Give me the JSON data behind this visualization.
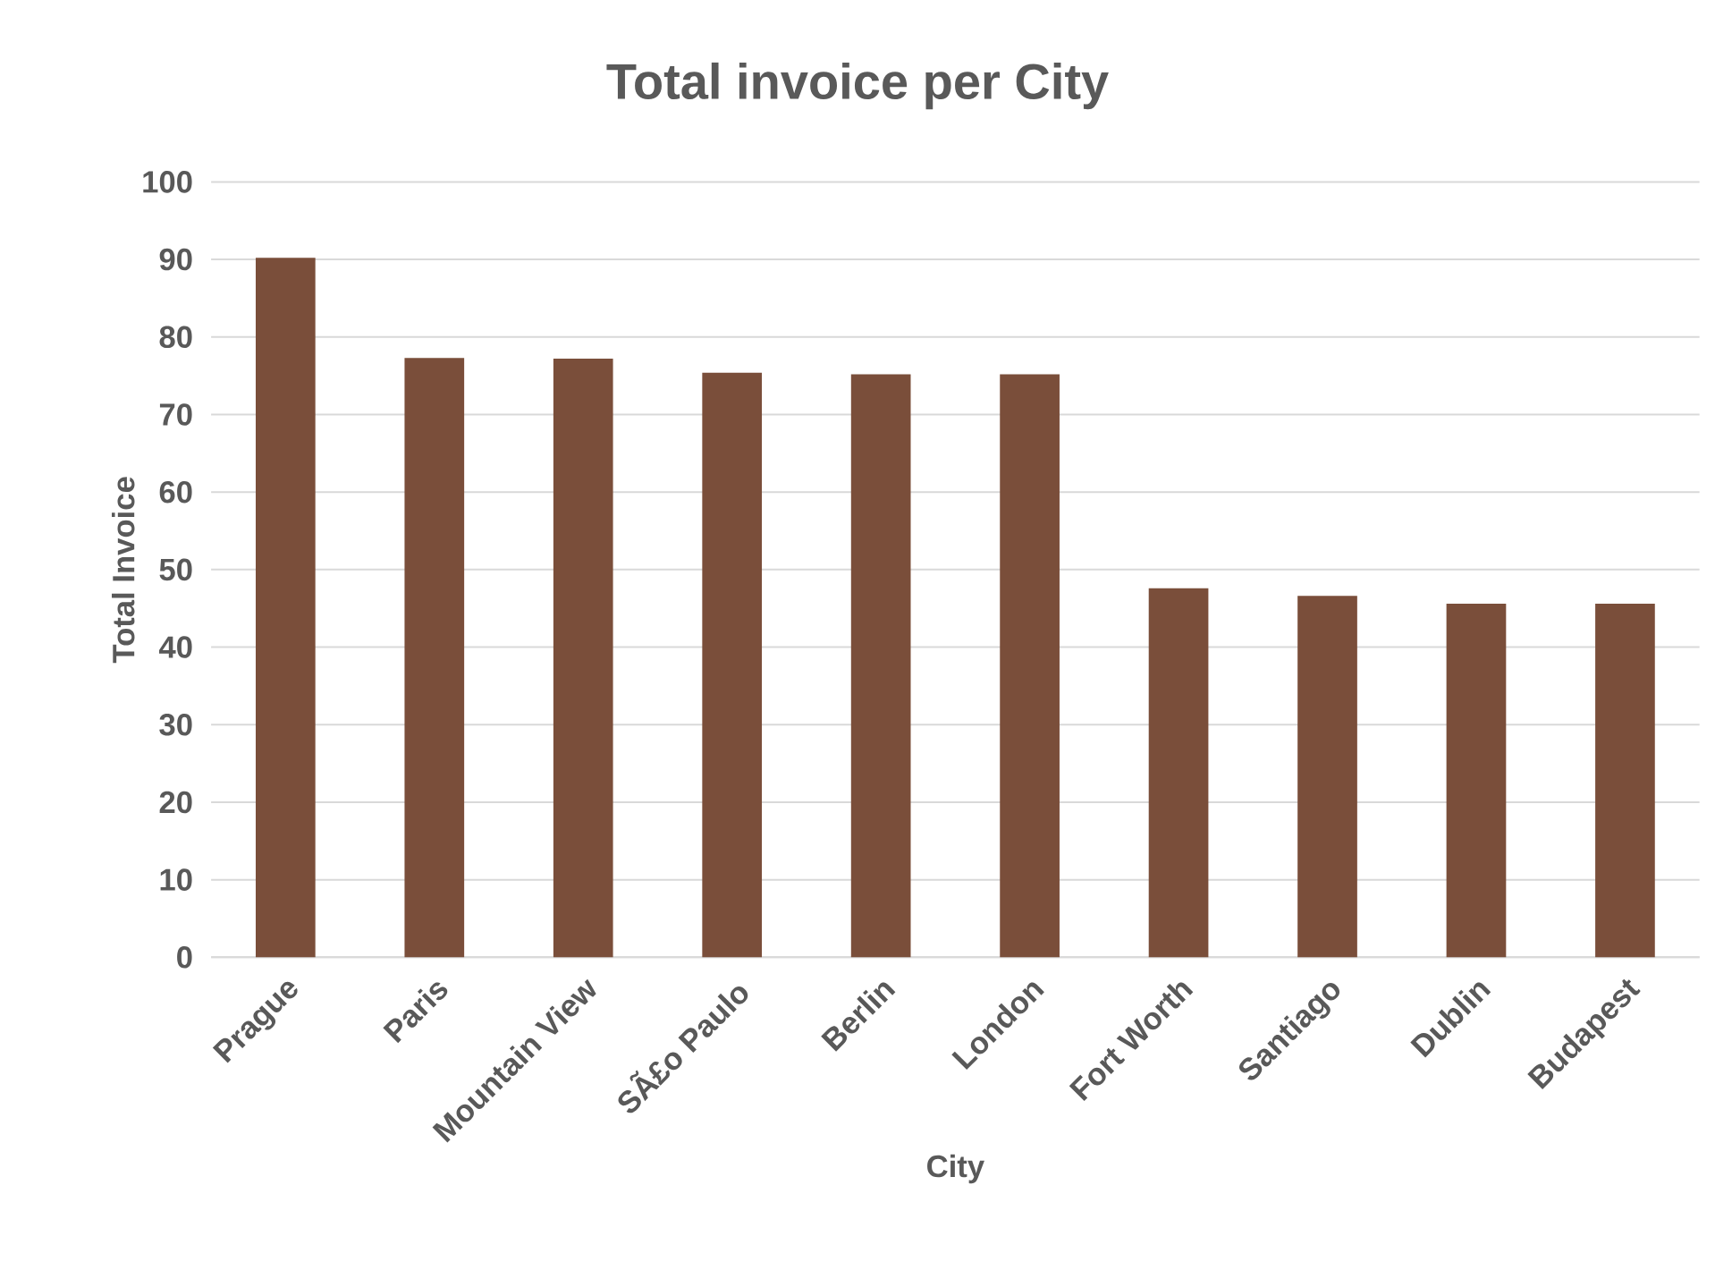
{
  "chart_data": {
    "type": "bar",
    "title": "Total invoice per City",
    "xlabel": "City",
    "ylabel": "Total Invoice",
    "categories": [
      "Prague",
      "Paris",
      "Mountain View",
      "SÃ£o Paulo",
      "Berlin",
      "London",
      "Fort Worth",
      "Santiago",
      "Dublin",
      "Budapest"
    ],
    "values": [
      90.2,
      77.3,
      77.2,
      75.4,
      75.2,
      75.2,
      47.6,
      46.6,
      45.6,
      45.6
    ],
    "color": "#7a4e3a",
    "ylim": [
      0,
      100
    ],
    "yticks": [
      0,
      10,
      20,
      30,
      40,
      50,
      60,
      70,
      80,
      90,
      100
    ],
    "grid": "y"
  }
}
